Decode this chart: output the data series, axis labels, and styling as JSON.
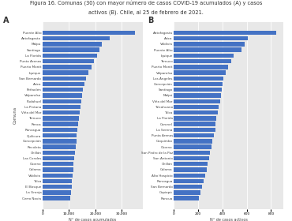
{
  "title_line1": "Figura 16. Comunas (30) con mayor número de casos COVID-19 acumulados (A) y casos",
  "title_line2": "activos (B). Chile, al 25 de febrero de 2021.",
  "panel_A_label": "A",
  "panel_B_label": "B",
  "xlabel_A": "N° de casos acumulados",
  "xlabel_B": "N° de casos activos",
  "ylabel": "Comuna",
  "communes_A": [
    "Puente Alto",
    "Antofagasta",
    "Maípú",
    "Santiago",
    "La Florida",
    "Punta Arenas",
    "Puerto Montt",
    "Iquique",
    "San Bernardo",
    "Arica",
    "Peñaolén",
    "Valparaíso",
    "Pudahuel",
    "La Pintana",
    "Viña del Mar",
    "Temuco",
    "Renca",
    "Rancagua",
    "Quilicura",
    "Concepción",
    "Recoleta",
    "Chillán",
    "Las Condes",
    "Osorno",
    "Calama",
    "Valdivia",
    "Talca",
    "El Bosque",
    "La Granja",
    "Cerro Navia"
  ],
  "values_A": [
    35000,
    25500,
    22500,
    21500,
    20500,
    19500,
    18500,
    17500,
    16500,
    15800,
    15200,
    14900,
    14600,
    14300,
    14100,
    13800,
    13500,
    13200,
    13000,
    12800,
    12500,
    12200,
    12000,
    11800,
    11600,
    11400,
    11200,
    11000,
    10800,
    10500
  ],
  "communes_B": [
    "Antofagasta",
    "Arica",
    "Valdivia",
    "Puente Alto",
    "Iquique",
    "Temuco",
    "Puerto Montt",
    "Valparaíso",
    "Los Ángeles",
    "Concepción",
    "Santiago",
    "Maípú",
    "Viña del Mar",
    "Talcahuano",
    "Talca",
    "La Florida",
    "Coronel",
    "La Serena",
    "Punta Arenas",
    "Coquimbo",
    "Osorno",
    "San Pedro de la Paz",
    "San Antonio",
    "Chillán",
    "Calama",
    "Alto Hospicio",
    "Rancagua",
    "San Bernardo",
    "Copiapó",
    "Rancua"
  ],
  "values_B": [
    840,
    610,
    580,
    560,
    490,
    470,
    445,
    425,
    410,
    400,
    395,
    390,
    380,
    370,
    360,
    350,
    345,
    340,
    330,
    320,
    310,
    300,
    290,
    280,
    270,
    260,
    245,
    230,
    220,
    205
  ],
  "bar_color": "#4472c4",
  "bg_color": "#e8e8e8",
  "fig_bg": "#ffffff",
  "xticks_A": [
    0,
    10000,
    20000,
    30000
  ],
  "xlim_A": [
    0,
    38000
  ],
  "xticks_B": [
    0,
    200,
    400,
    600,
    800
  ],
  "xlim_B": [
    0,
    900
  ]
}
